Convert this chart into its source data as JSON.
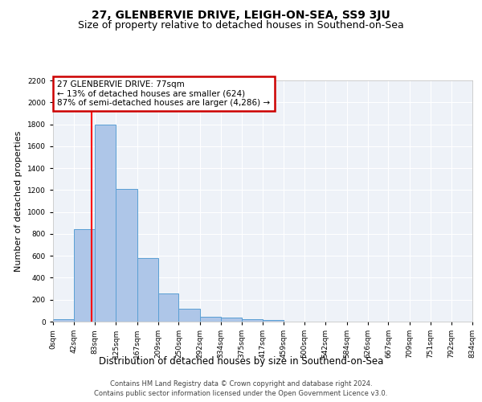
{
  "title": "27, GLENBERVIE DRIVE, LEIGH-ON-SEA, SS9 3JU",
  "subtitle": "Size of property relative to detached houses in Southend-on-Sea",
  "xlabel": "Distribution of detached houses by size in Southend-on-Sea",
  "ylabel": "Number of detached properties",
  "bin_edges": [
    0,
    42,
    83,
    125,
    167,
    209,
    250,
    292,
    334,
    375,
    417,
    459,
    500,
    542,
    584,
    626,
    667,
    709,
    751,
    792,
    834
  ],
  "bar_heights": [
    25,
    840,
    1800,
    1210,
    580,
    255,
    120,
    45,
    35,
    25,
    15,
    0,
    0,
    0,
    0,
    0,
    0,
    0,
    0,
    0
  ],
  "bar_color": "#aec6e8",
  "bar_edge_color": "#5a9fd4",
  "red_line_x": 77,
  "ylim": [
    0,
    2200
  ],
  "yticks": [
    0,
    200,
    400,
    600,
    800,
    1000,
    1200,
    1400,
    1600,
    1800,
    2000,
    2200
  ],
  "annotation_title": "27 GLENBERVIE DRIVE: 77sqm",
  "annotation_line1": "← 13% of detached houses are smaller (624)",
  "annotation_line2": "87% of semi-detached houses are larger (4,286) →",
  "annotation_box_color": "#ffffff",
  "annotation_box_edge_color": "#cc0000",
  "footer_line1": "Contains HM Land Registry data © Crown copyright and database right 2024.",
  "footer_line2": "Contains public sector information licensed under the Open Government Licence v3.0.",
  "bg_color": "#eef2f8",
  "grid_color": "#ffffff",
  "title_fontsize": 10,
  "subtitle_fontsize": 9,
  "tick_label_fontsize": 6.5,
  "xlabel_fontsize": 8.5,
  "ylabel_fontsize": 8,
  "annotation_fontsize": 7.5,
  "footer_fontsize": 6
}
